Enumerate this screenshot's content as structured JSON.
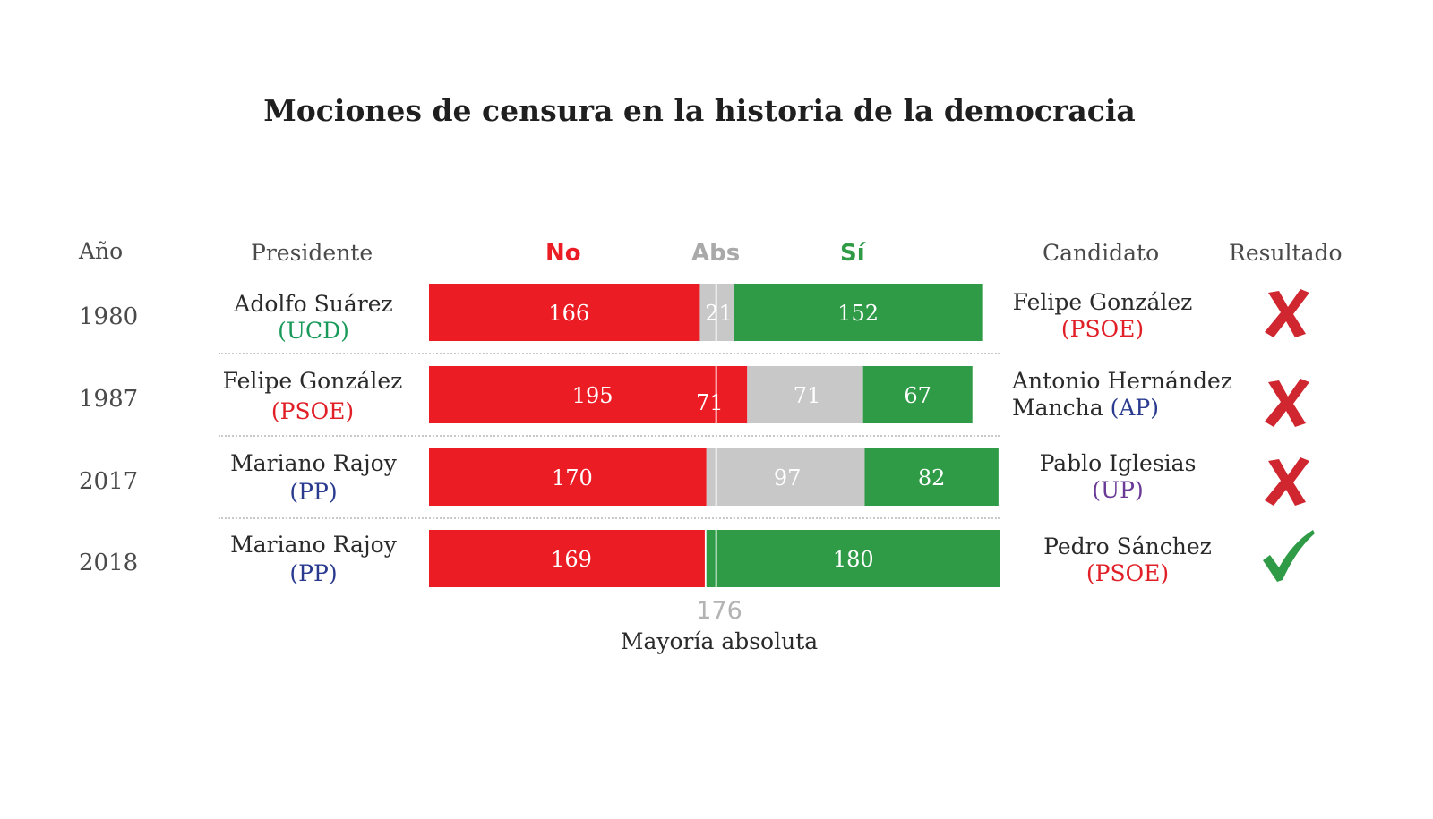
{
  "chart_data": {
    "type": "bar",
    "title": "Mociones de censura en la historia de la democracia",
    "columns": {
      "year": "Año",
      "president": "Presidente",
      "candidate": "Candidato",
      "result": "Resultado"
    },
    "series_labels": {
      "no": "No",
      "abs": "Abs",
      "si": "Sí"
    },
    "colors": {
      "no": "#ec1c24",
      "abs": "#c8c8c8",
      "si": "#2f9b47",
      "x": "#d02630",
      "check": "#2f9b47"
    },
    "majority": {
      "value": 176,
      "display": "176",
      "label": "Mayoría absoluta"
    },
    "rows": [
      {
        "year": "1980",
        "president": {
          "name": "Adolfo Suárez",
          "party": "(UCD)",
          "party_color": "#1a9a5a"
        },
        "no": 166,
        "abs": 21,
        "si": 152,
        "labels": {
          "no": "166",
          "abs": "21",
          "si": "152"
        },
        "candidate": {
          "name": "Felipe González",
          "party": "(PSOE)",
          "party_color": "#e01f26"
        },
        "result": "x-icon"
      },
      {
        "year": "1987",
        "president": {
          "name": "Felipe González",
          "party": "(PSOE)",
          "party_color": "#e01f26"
        },
        "no": 195,
        "abs": 71,
        "si": 67,
        "labels": {
          "no": "195",
          "abs": "71",
          "si": "67",
          "no_extra": "71"
        },
        "candidate": {
          "name": "Antonio Hernández",
          "name2": "Mancha",
          "party": "(AP)",
          "party_color": "#2a3b8f"
        },
        "result": "x-icon"
      },
      {
        "year": "2017",
        "president": {
          "name": "Mariano Rajoy",
          "party": "(PP)",
          "party_color": "#2a3b8f"
        },
        "no": 170,
        "abs": 97,
        "si": 82,
        "labels": {
          "no": "170",
          "abs": "97",
          "si": "82"
        },
        "candidate": {
          "name": "Pablo Iglesias",
          "party": "(UP)",
          "party_color": "#6a3a96"
        },
        "result": "x-icon"
      },
      {
        "year": "2018",
        "president": {
          "name": "Mariano Rajoy",
          "party": "(PP)",
          "party_color": "#2a3b8f"
        },
        "no": 169,
        "abs": 1,
        "si": 180,
        "labels": {
          "no": "169",
          "si": "180"
        },
        "candidate": {
          "name": "Pedro Sánchez",
          "party": "(PSOE)",
          "party_color": "#e01f26"
        },
        "result": "check-icon"
      }
    ]
  }
}
